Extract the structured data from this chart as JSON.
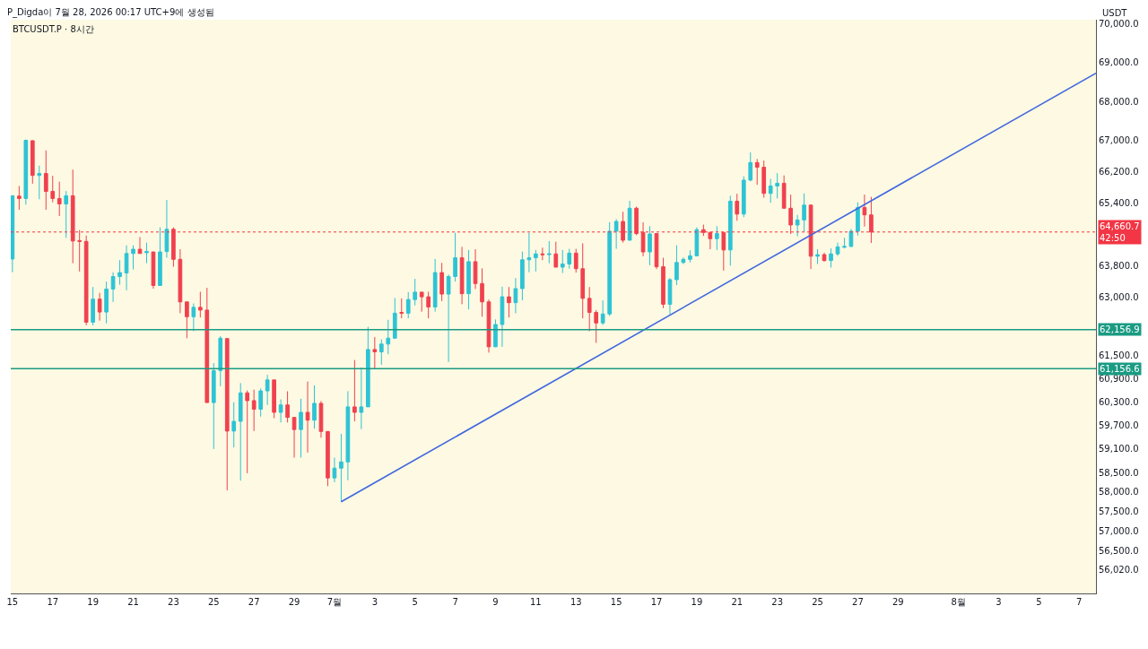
{
  "chart_data": {
    "type": "candlestick",
    "title": "BTCUSDT.P · 8시간",
    "ylabel": "USDT",
    "annotations": [
      "P_Digda이 7월 28, 2026 00:17 UTC+9에 생성됨"
    ],
    "x": [
      "2026-06-15T00:00",
      "2026-06-15T08:00",
      "2026-06-15T16:00",
      "2026-06-16T00:00",
      "2026-06-16T08:00",
      "2026-06-16T16:00",
      "2026-06-17T00:00",
      "2026-06-17T08:00",
      "2026-06-17T16:00",
      "2026-06-18T00:00",
      "2026-06-18T08:00",
      "2026-06-18T16:00",
      "2026-06-19T00:00",
      "2026-06-19T08:00",
      "2026-06-19T16:00",
      "2026-06-20T00:00",
      "2026-06-20T08:00",
      "2026-06-20T16:00",
      "2026-06-21T00:00",
      "2026-06-21T08:00",
      "2026-06-21T16:00",
      "2026-06-22T00:00",
      "2026-06-22T08:00",
      "2026-06-22T16:00",
      "2026-06-23T00:00",
      "2026-06-23T08:00",
      "2026-06-23T16:00",
      "2026-06-24T00:00",
      "2026-06-24T08:00",
      "2026-06-24T16:00",
      "2026-06-25T00:00",
      "2026-06-25T08:00",
      "2026-06-25T16:00",
      "2026-06-26T00:00",
      "2026-06-26T08:00",
      "2026-06-26T16:00",
      "2026-06-27T00:00",
      "2026-06-27T08:00",
      "2026-06-27T16:00",
      "2026-06-28T00:00",
      "2026-06-28T08:00",
      "2026-06-28T16:00",
      "2026-06-29T00:00",
      "2026-06-29T08:00",
      "2026-06-29T16:00",
      "2026-06-30T00:00",
      "2026-06-30T08:00",
      "2026-06-30T16:00",
      "2026-07-01T00:00",
      "2026-07-01T08:00",
      "2026-07-01T16:00",
      "2026-07-02T00:00",
      "2026-07-02T08:00",
      "2026-07-02T16:00",
      "2026-07-03T00:00",
      "2026-07-03T08:00",
      "2026-07-03T16:00",
      "2026-07-04T00:00",
      "2026-07-04T08:00",
      "2026-07-04T16:00",
      "2026-07-05T00:00",
      "2026-07-05T08:00",
      "2026-07-05T16:00",
      "2026-07-06T00:00",
      "2026-07-06T08:00",
      "2026-07-06T16:00",
      "2026-07-07T00:00",
      "2026-07-07T08:00",
      "2026-07-07T16:00",
      "2026-07-08T00:00",
      "2026-07-08T08:00",
      "2026-07-08T16:00",
      "2026-07-09T00:00",
      "2026-07-09T08:00",
      "2026-07-09T16:00",
      "2026-07-10T00:00",
      "2026-07-10T08:00",
      "2026-07-10T16:00",
      "2026-07-11T00:00",
      "2026-07-11T08:00",
      "2026-07-11T16:00",
      "2026-07-12T00:00",
      "2026-07-12T08:00",
      "2026-07-12T16:00",
      "2026-07-13T00:00",
      "2026-07-13T08:00",
      "2026-07-13T16:00",
      "2026-07-14T00:00",
      "2026-07-14T08:00",
      "2026-07-14T16:00",
      "2026-07-15T00:00",
      "2026-07-15T08:00",
      "2026-07-15T16:00",
      "2026-07-16T00:00",
      "2026-07-16T08:00",
      "2026-07-16T16:00",
      "2026-07-17T00:00",
      "2026-07-17T08:00",
      "2026-07-17T16:00",
      "2026-07-18T00:00",
      "2026-07-18T08:00",
      "2026-07-18T16:00",
      "2026-07-19T00:00",
      "2026-07-19T08:00",
      "2026-07-19T16:00",
      "2026-07-20T00:00",
      "2026-07-20T08:00",
      "2026-07-20T16:00",
      "2026-07-21T00:00",
      "2026-07-21T08:00",
      "2026-07-21T16:00",
      "2026-07-22T00:00",
      "2026-07-22T08:00",
      "2026-07-22T16:00",
      "2026-07-23T00:00",
      "2026-07-23T08:00",
      "2026-07-23T16:00",
      "2026-07-24T00:00",
      "2026-07-24T08:00",
      "2026-07-24T16:00",
      "2026-07-25T00:00",
      "2026-07-25T08:00",
      "2026-07-25T16:00",
      "2026-07-26T00:00",
      "2026-07-26T08:00",
      "2026-07-26T16:00",
      "2026-07-27T00:00",
      "2026-07-27T08:00",
      "2026-07-27T16:00"
    ],
    "ohlc": [
      [
        63970,
        65590,
        63630,
        65590
      ],
      [
        65580,
        65840,
        65230,
        65520
      ],
      [
        65520,
        67030,
        65360,
        67010
      ],
      [
        67000,
        67010,
        65900,
        66110
      ],
      [
        66110,
        66360,
        65500,
        66160
      ],
      [
        66160,
        66750,
        65230,
        65700
      ],
      [
        65700,
        66100,
        65420,
        65520
      ],
      [
        65520,
        65950,
        65070,
        65380
      ],
      [
        65380,
        65710,
        64510,
        65590
      ],
      [
        65590,
        66260,
        63860,
        64430
      ],
      [
        64440,
        64710,
        63650,
        64420
      ],
      [
        64420,
        64570,
        62270,
        62350
      ],
      [
        62350,
        63250,
        62270,
        62940
      ],
      [
        62940,
        63100,
        62390,
        62610
      ],
      [
        62610,
        63390,
        62320,
        63200
      ],
      [
        63200,
        63630,
        62870,
        63520
      ],
      [
        63520,
        63940,
        63310,
        63620
      ],
      [
        63610,
        64320,
        63170,
        64110
      ],
      [
        64110,
        64320,
        63700,
        64220
      ],
      [
        64220,
        64530,
        64110,
        64110
      ],
      [
        64130,
        64390,
        63860,
        64160
      ],
      [
        64150,
        64150,
        63210,
        63290
      ],
      [
        63290,
        64780,
        63290,
        64150
      ],
      [
        64160,
        65480,
        64000,
        64730
      ],
      [
        64730,
        64780,
        63770,
        63960
      ],
      [
        63960,
        64220,
        62580,
        62870
      ],
      [
        62870,
        62870,
        61940,
        62490
      ],
      [
        62490,
        62830,
        62120,
        62730
      ],
      [
        62730,
        63130,
        62470,
        62660
      ],
      [
        62660,
        63230,
        60290,
        60290
      ],
      [
        60290,
        61300,
        59100,
        61110
      ],
      [
        61110,
        61990,
        60710,
        61940
      ],
      [
        61930,
        61930,
        58040,
        59560
      ],
      [
        59560,
        60300,
        59140,
        59810
      ],
      [
        59810,
        60790,
        58290,
        60540
      ],
      [
        60540,
        60600,
        58480,
        60340
      ],
      [
        60340,
        60620,
        59560,
        60120
      ],
      [
        60120,
        60650,
        59930,
        60590
      ],
      [
        60590,
        61000,
        60230,
        60870
      ],
      [
        60870,
        60870,
        59890,
        60040
      ],
      [
        60040,
        60370,
        59780,
        60230
      ],
      [
        60230,
        60580,
        59780,
        59910
      ],
      [
        59910,
        59910,
        58880,
        59600
      ],
      [
        59600,
        60390,
        58880,
        60040
      ],
      [
        60040,
        60830,
        59010,
        59840
      ],
      [
        59840,
        60730,
        59620,
        60270
      ],
      [
        60270,
        60330,
        59390,
        59550
      ],
      [
        59550,
        59550,
        58150,
        58360
      ],
      [
        58360,
        58880,
        58250,
        58610
      ],
      [
        58610,
        59490,
        57750,
        58770
      ],
      [
        58770,
        60580,
        58300,
        60180
      ],
      [
        60180,
        61380,
        59810,
        60040
      ],
      [
        60040,
        61190,
        59610,
        60180
      ],
      [
        60180,
        62230,
        60180,
        61650
      ],
      [
        61650,
        61970,
        61160,
        61590
      ],
      [
        61590,
        61910,
        61260,
        61790
      ],
      [
        61790,
        62410,
        61530,
        61940
      ],
      [
        61940,
        62970,
        61940,
        62580
      ],
      [
        62600,
        62960,
        62450,
        62580
      ],
      [
        62580,
        63120,
        62450,
        62930
      ],
      [
        62930,
        63460,
        62780,
        63120
      ],
      [
        63120,
        63120,
        62620,
        63000
      ],
      [
        63000,
        63130,
        62450,
        62740
      ],
      [
        62740,
        63970,
        62620,
        63620
      ],
      [
        63620,
        63870,
        62890,
        63070
      ],
      [
        63070,
        63570,
        61330,
        63520
      ],
      [
        63520,
        64640,
        63390,
        64000
      ],
      [
        64000,
        64280,
        62810,
        63080
      ],
      [
        63080,
        64200,
        62680,
        63900
      ],
      [
        63900,
        64220,
        63200,
        63340
      ],
      [
        63340,
        63730,
        62490,
        62870
      ],
      [
        62870,
        62930,
        61570,
        61720
      ],
      [
        61720,
        62420,
        61710,
        62290
      ],
      [
        62290,
        63260,
        61720,
        63000
      ],
      [
        63000,
        63250,
        62470,
        62850
      ],
      [
        62850,
        63480,
        62580,
        63210
      ],
      [
        63210,
        64160,
        62910,
        63950
      ],
      [
        63950,
        64640,
        63630,
        64000
      ],
      [
        64000,
        64200,
        63650,
        64100
      ],
      [
        64100,
        64260,
        63940,
        64080
      ],
      [
        64080,
        64430,
        63860,
        64100
      ],
      [
        64100,
        64410,
        63760,
        63760
      ],
      [
        63760,
        64200,
        63610,
        63840
      ],
      [
        63840,
        64230,
        63720,
        64120
      ],
      [
        64120,
        64230,
        63620,
        63720
      ],
      [
        63720,
        64370,
        62450,
        62960
      ],
      [
        62960,
        63250,
        62120,
        62600
      ],
      [
        62600,
        62660,
        61820,
        62330
      ],
      [
        62330,
        62910,
        62280,
        62560
      ],
      [
        62560,
        64910,
        62510,
        64680
      ],
      [
        64680,
        64990,
        64230,
        64930
      ],
      [
        64930,
        65180,
        64390,
        64450
      ],
      [
        64450,
        65460,
        64450,
        65270
      ],
      [
        65270,
        65310,
        64580,
        64620
      ],
      [
        64650,
        64910,
        64040,
        64150
      ],
      [
        64150,
        64810,
        63810,
        64610
      ],
      [
        64620,
        64620,
        63710,
        63770
      ],
      [
        63770,
        64000,
        62710,
        62810
      ],
      [
        62810,
        63480,
        62550,
        63440
      ],
      [
        63440,
        64320,
        63300,
        63880
      ],
      [
        63880,
        64010,
        63840,
        63960
      ],
      [
        63960,
        64190,
        63880,
        64050
      ],
      [
        64050,
        64780,
        64040,
        64720
      ],
      [
        64720,
        64850,
        64560,
        64650
      ],
      [
        64650,
        64660,
        64220,
        64490
      ],
      [
        64490,
        64810,
        64200,
        64620
      ],
      [
        64650,
        64650,
        63670,
        64200
      ],
      [
        64200,
        65590,
        63800,
        65450
      ],
      [
        65450,
        65640,
        64950,
        65120
      ],
      [
        65120,
        66090,
        65040,
        65990
      ],
      [
        65990,
        66700,
        65960,
        66440
      ],
      [
        66440,
        66530,
        65870,
        66320
      ],
      [
        66320,
        66490,
        65540,
        65650
      ],
      [
        65650,
        66020,
        65410,
        65840
      ],
      [
        65840,
        66170,
        65520,
        65910
      ],
      [
        65910,
        66110,
        65260,
        65270
      ],
      [
        65270,
        65620,
        64610,
        64840
      ],
      [
        64840,
        65100,
        64550,
        64970
      ],
      [
        64970,
        65650,
        64660,
        65350
      ],
      [
        65350,
        65360,
        63710,
        64040
      ],
      [
        64040,
        64220,
        63840,
        64080
      ],
      [
        64080,
        64130,
        63900,
        63930
      ],
      [
        63930,
        64240,
        63750,
        64100
      ],
      [
        64100,
        64390,
        64050,
        64280
      ],
      [
        64270,
        64510,
        64240,
        64290
      ],
      [
        64290,
        64740,
        64280,
        64680
      ],
      [
        64680,
        65420,
        64570,
        65290
      ],
      [
        65290,
        65620,
        64800,
        65100
      ],
      [
        65100,
        65560,
        64380,
        64660.7
      ]
    ],
    "colors": [
      "#2ec3d5",
      "#f0414f",
      "#2ec3d5",
      "#f0414f",
      "#2ec3d5",
      "#f0414f",
      "#f0414f",
      "#f0414f",
      "#2ec3d5",
      "#f0414f",
      "#f0414f",
      "#f0414f",
      "#2ec3d5",
      "#f0414f",
      "#2ec3d5",
      "#2ec3d5",
      "#2ec3d5",
      "#2ec3d5",
      "#2ec3d5",
      "#f0414f",
      "#2ec3d5",
      "#f0414f",
      "#2ec3d5",
      "#2ec3d5",
      "#f0414f",
      "#f0414f",
      "#f0414f",
      "#2ec3d5",
      "#f0414f",
      "#f0414f",
      "#2ec3d5",
      "#2ec3d5",
      "#f0414f",
      "#2ec3d5",
      "#2ec3d5",
      "#f0414f",
      "#f0414f",
      "#2ec3d5",
      "#2ec3d5",
      "#f0414f",
      "#2ec3d5",
      "#f0414f",
      "#f0414f",
      "#2ec3d5",
      "#f0414f",
      "#2ec3d5",
      "#f0414f",
      "#f0414f",
      "#2ec3d5",
      "#2ec3d5",
      "#2ec3d5",
      "#f0414f",
      "#2ec3d5",
      "#2ec3d5",
      "#f0414f",
      "#2ec3d5",
      "#2ec3d5",
      "#2ec3d5",
      "#f0414f",
      "#2ec3d5",
      "#2ec3d5",
      "#f0414f",
      "#f0414f",
      "#2ec3d5",
      "#f0414f",
      "#2ec3d5",
      "#2ec3d5",
      "#f0414f",
      "#2ec3d5",
      "#f0414f",
      "#f0414f",
      "#f0414f",
      "#2ec3d5",
      "#2ec3d5",
      "#f0414f",
      "#2ec3d5",
      "#2ec3d5",
      "#2ec3d5",
      "#2ec3d5",
      "#f0414f",
      "#2ec3d5",
      "#f0414f",
      "#2ec3d5",
      "#2ec3d5",
      "#f0414f",
      "#f0414f",
      "#f0414f",
      "#f0414f",
      "#2ec3d5",
      "#2ec3d5",
      "#2ec3d5",
      "#f0414f",
      "#2ec3d5",
      "#f0414f",
      "#f0414f",
      "#2ec3d5",
      "#f0414f",
      "#f0414f",
      "#2ec3d5",
      "#2ec3d5",
      "#2ec3d5",
      "#2ec3d5",
      "#2ec3d5",
      "#f0414f",
      "#f0414f",
      "#2ec3d5",
      "#f0414f",
      "#2ec3d5",
      "#f0414f",
      "#2ec3d5",
      "#2ec3d5",
      "#f0414f",
      "#f0414f",
      "#2ec3d5",
      "#2ec3d5",
      "#f0414f",
      "#f0414f",
      "#2ec3d5",
      "#2ec3d5",
      "#f0414f",
      "#2ec3d5",
      "#f0414f",
      "#2ec3d5",
      "#2ec3d5",
      "#2ec3d5",
      "#2ec3d5",
      "#2ec3d5",
      "#f0414f",
      "#f0414f"
    ],
    "series": [
      {
        "type": "line",
        "x": [
          "2026-07-01T08:00",
          "2026-08-07T20:00"
        ],
        "values": [
          57750,
          68730
        ],
        "color": "#3f66e0"
      }
    ],
    "ref_lines": [
      {
        "axis": "y",
        "value": 64660.7,
        "label": "64,660.7\n42:50",
        "color": "#f23645",
        "line_style": "dotted"
      },
      {
        "axis": "y",
        "value": 62156.9,
        "label": "62,156.9",
        "color": "#1a9b83",
        "line_style": "solid"
      },
      {
        "axis": "y",
        "value": 61156.6,
        "label": "61,156.6",
        "color": "#1a9b83",
        "line_style": "solid"
      }
    ],
    "xlim": [
      "2026-06-14T22:00",
      "2026-08-07T20:00"
    ],
    "xticks": [
      {
        "value": "2026-06-15",
        "label": "15"
      },
      {
        "value": "2026-06-17",
        "label": "17"
      },
      {
        "value": "2026-06-19",
        "label": "19"
      },
      {
        "value": "2026-06-21",
        "label": "21"
      },
      {
        "value": "2026-06-23",
        "label": "23"
      },
      {
        "value": "2026-06-25",
        "label": "25"
      },
      {
        "value": "2026-06-27",
        "label": "27"
      },
      {
        "value": "2026-06-29",
        "label": "29"
      },
      {
        "value": "2026-07-01",
        "label": "7월"
      },
      {
        "value": "2026-07-03",
        "label": "3"
      },
      {
        "value": "2026-07-05",
        "label": "5"
      },
      {
        "value": "2026-07-07",
        "label": "7"
      },
      {
        "value": "2026-07-09",
        "label": "9"
      },
      {
        "value": "2026-07-11",
        "label": "11"
      },
      {
        "value": "2026-07-13",
        "label": "13"
      },
      {
        "value": "2026-07-15",
        "label": "15"
      },
      {
        "value": "2026-07-17",
        "label": "17"
      },
      {
        "value": "2026-07-19",
        "label": "19"
      },
      {
        "value": "2026-07-21",
        "label": "21"
      },
      {
        "value": "2026-07-23",
        "label": "23"
      },
      {
        "value": "2026-07-25",
        "label": "25"
      },
      {
        "value": "2026-07-27",
        "label": "27"
      },
      {
        "value": "2026-07-29",
        "label": "29"
      },
      {
        "value": "2026-08-01",
        "label": "8월"
      },
      {
        "value": "2026-08-03",
        "label": "3"
      },
      {
        "value": "2026-08-05",
        "label": "5"
      },
      {
        "value": "2026-08-07",
        "label": "7"
      }
    ],
    "ylim": [
      55400,
      70100
    ],
    "yticks": [
      {
        "value": 70000,
        "label": "70,000.0"
      },
      {
        "value": 69000,
        "label": "69,000.0"
      },
      {
        "value": 68000,
        "label": "68,000.0"
      },
      {
        "value": 67000,
        "label": "67,000.0"
      },
      {
        "value": 66200,
        "label": "66,200.0"
      },
      {
        "value": 65400,
        "label": "65,400.0"
      },
      {
        "value": 63800,
        "label": "63,800.0"
      },
      {
        "value": 63000,
        "label": "63,000.0"
      },
      {
        "value": 61500,
        "label": "61,500.0"
      },
      {
        "value": 60900,
        "label": "60,900.0"
      },
      {
        "value": 60300,
        "label": "60,300.0"
      },
      {
        "value": 59700,
        "label": "59,700.0"
      },
      {
        "value": 59100,
        "label": "59,100.0"
      },
      {
        "value": 58500,
        "label": "58,500.0"
      },
      {
        "value": 58000,
        "label": "58,000.0"
      },
      {
        "value": 57500,
        "label": "57,500.0"
      },
      {
        "value": 57000,
        "label": "57,000.0"
      },
      {
        "value": 56500,
        "label": "56,500.0"
      },
      {
        "value": 56020,
        "label": "56,020.0"
      }
    ]
  }
}
